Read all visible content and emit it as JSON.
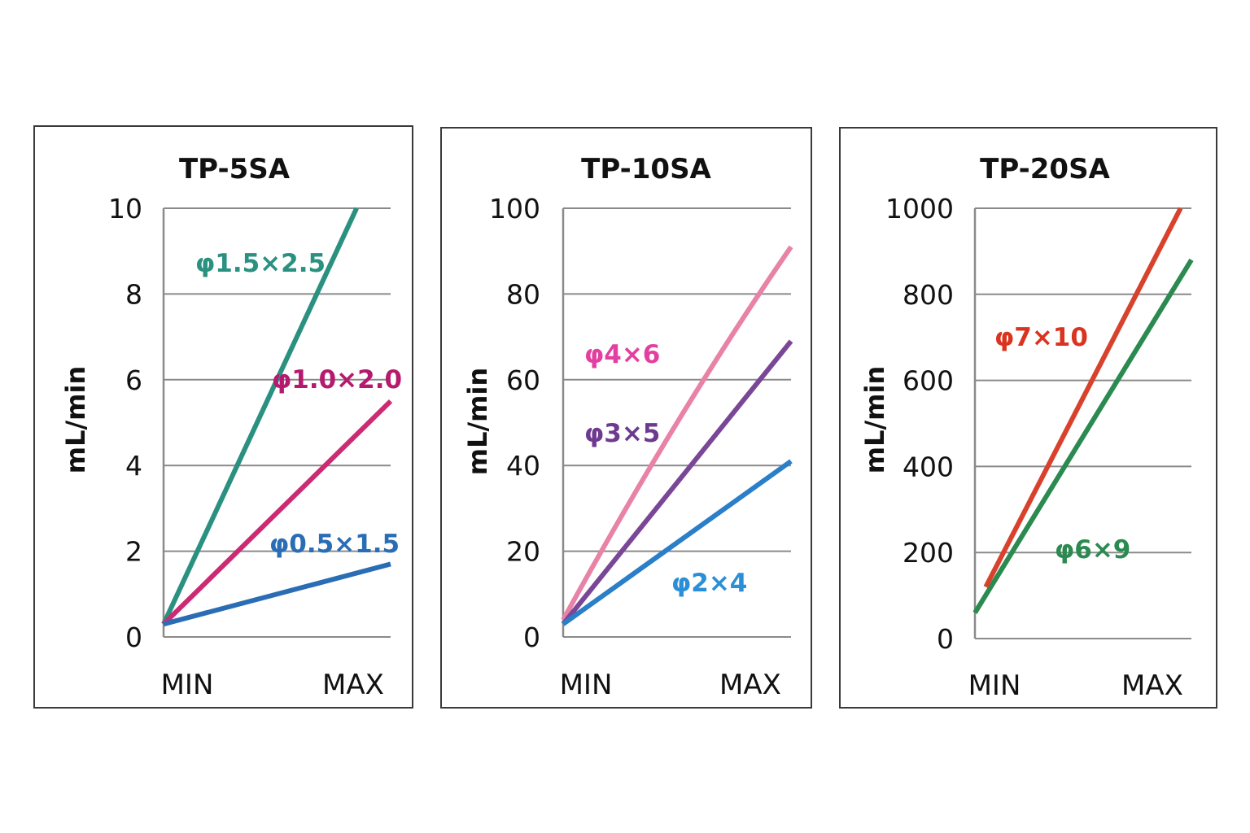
{
  "chart_data": [
    {
      "type": "line",
      "title": "TP-5SA",
      "xlabel": "",
      "ylabel": "mL/min",
      "categories": [
        "MIN",
        "MAX"
      ],
      "ylim": [
        0,
        10
      ],
      "yticks": [
        "0",
        "2",
        "4",
        "6",
        "8",
        "10"
      ],
      "grid": true,
      "series": [
        {
          "name": "φ1.5×2.5",
          "color": "#2a9080",
          "x": [
            0,
            0.85
          ],
          "values": [
            0.3,
            10
          ]
        },
        {
          "name": "φ1.0×2.0",
          "color": "#cc2b73",
          "x": [
            0,
            1
          ],
          "values": [
            0.3,
            5.5
          ]
        },
        {
          "name": "φ0.5×1.5",
          "color": "#2b6db5",
          "x": [
            0,
            1
          ],
          "values": [
            0.3,
            1.7
          ]
        }
      ],
      "labels": [
        {
          "text": "φ1.5×2.5",
          "color": "#2a9080"
        },
        {
          "text": "φ1.0×2.0",
          "color": "#b51a6e"
        },
        {
          "text": "φ0.5×1.5",
          "color": "#2b6db5"
        }
      ]
    },
    {
      "type": "line",
      "title": "TP-10SA",
      "xlabel": "",
      "ylabel": "mL/min",
      "categories": [
        "MIN",
        "MAX"
      ],
      "ylim": [
        0,
        100
      ],
      "yticks": [
        "0",
        "20",
        "40",
        "60",
        "80",
        "100"
      ],
      "grid": true,
      "series": [
        {
          "name": "φ4×6",
          "color": "#e882a6",
          "x": [
            0,
            0.5,
            1
          ],
          "values": [
            4,
            50,
            91
          ]
        },
        {
          "name": "φ3×5",
          "color": "#7a4797",
          "x": [
            0,
            1
          ],
          "values": [
            3,
            69
          ]
        },
        {
          "name": "φ2×4",
          "color": "#2a7fc8",
          "x": [
            0,
            1
          ],
          "values": [
            3,
            41
          ]
        }
      ],
      "labels": [
        {
          "text": "φ4×6",
          "color": "#e33fa0"
        },
        {
          "text": "φ3×5",
          "color": "#6d3a8f"
        },
        {
          "text": "φ2×4",
          "color": "#2a8fd6"
        }
      ]
    },
    {
      "type": "line",
      "title": "TP-20SA",
      "xlabel": "",
      "ylabel": "mL/min",
      "categories": [
        "MIN",
        "MAX"
      ],
      "ylim": [
        0,
        1000
      ],
      "yticks": [
        "0",
        "200",
        "400",
        "600",
        "800",
        "1000"
      ],
      "grid": true,
      "series": [
        {
          "name": "φ6×9",
          "color": "#2a8a4f",
          "x": [
            0,
            1
          ],
          "values": [
            60,
            880
          ]
        },
        {
          "name": "φ7×10",
          "color": "#d8422c",
          "x": [
            0.05,
            0.95
          ],
          "values": [
            120,
            1000
          ]
        }
      ],
      "labels": [
        {
          "text": "φ7×10",
          "color": "#d9341f"
        },
        {
          "text": "φ6×9",
          "color": "#2a8a4f"
        }
      ]
    }
  ]
}
